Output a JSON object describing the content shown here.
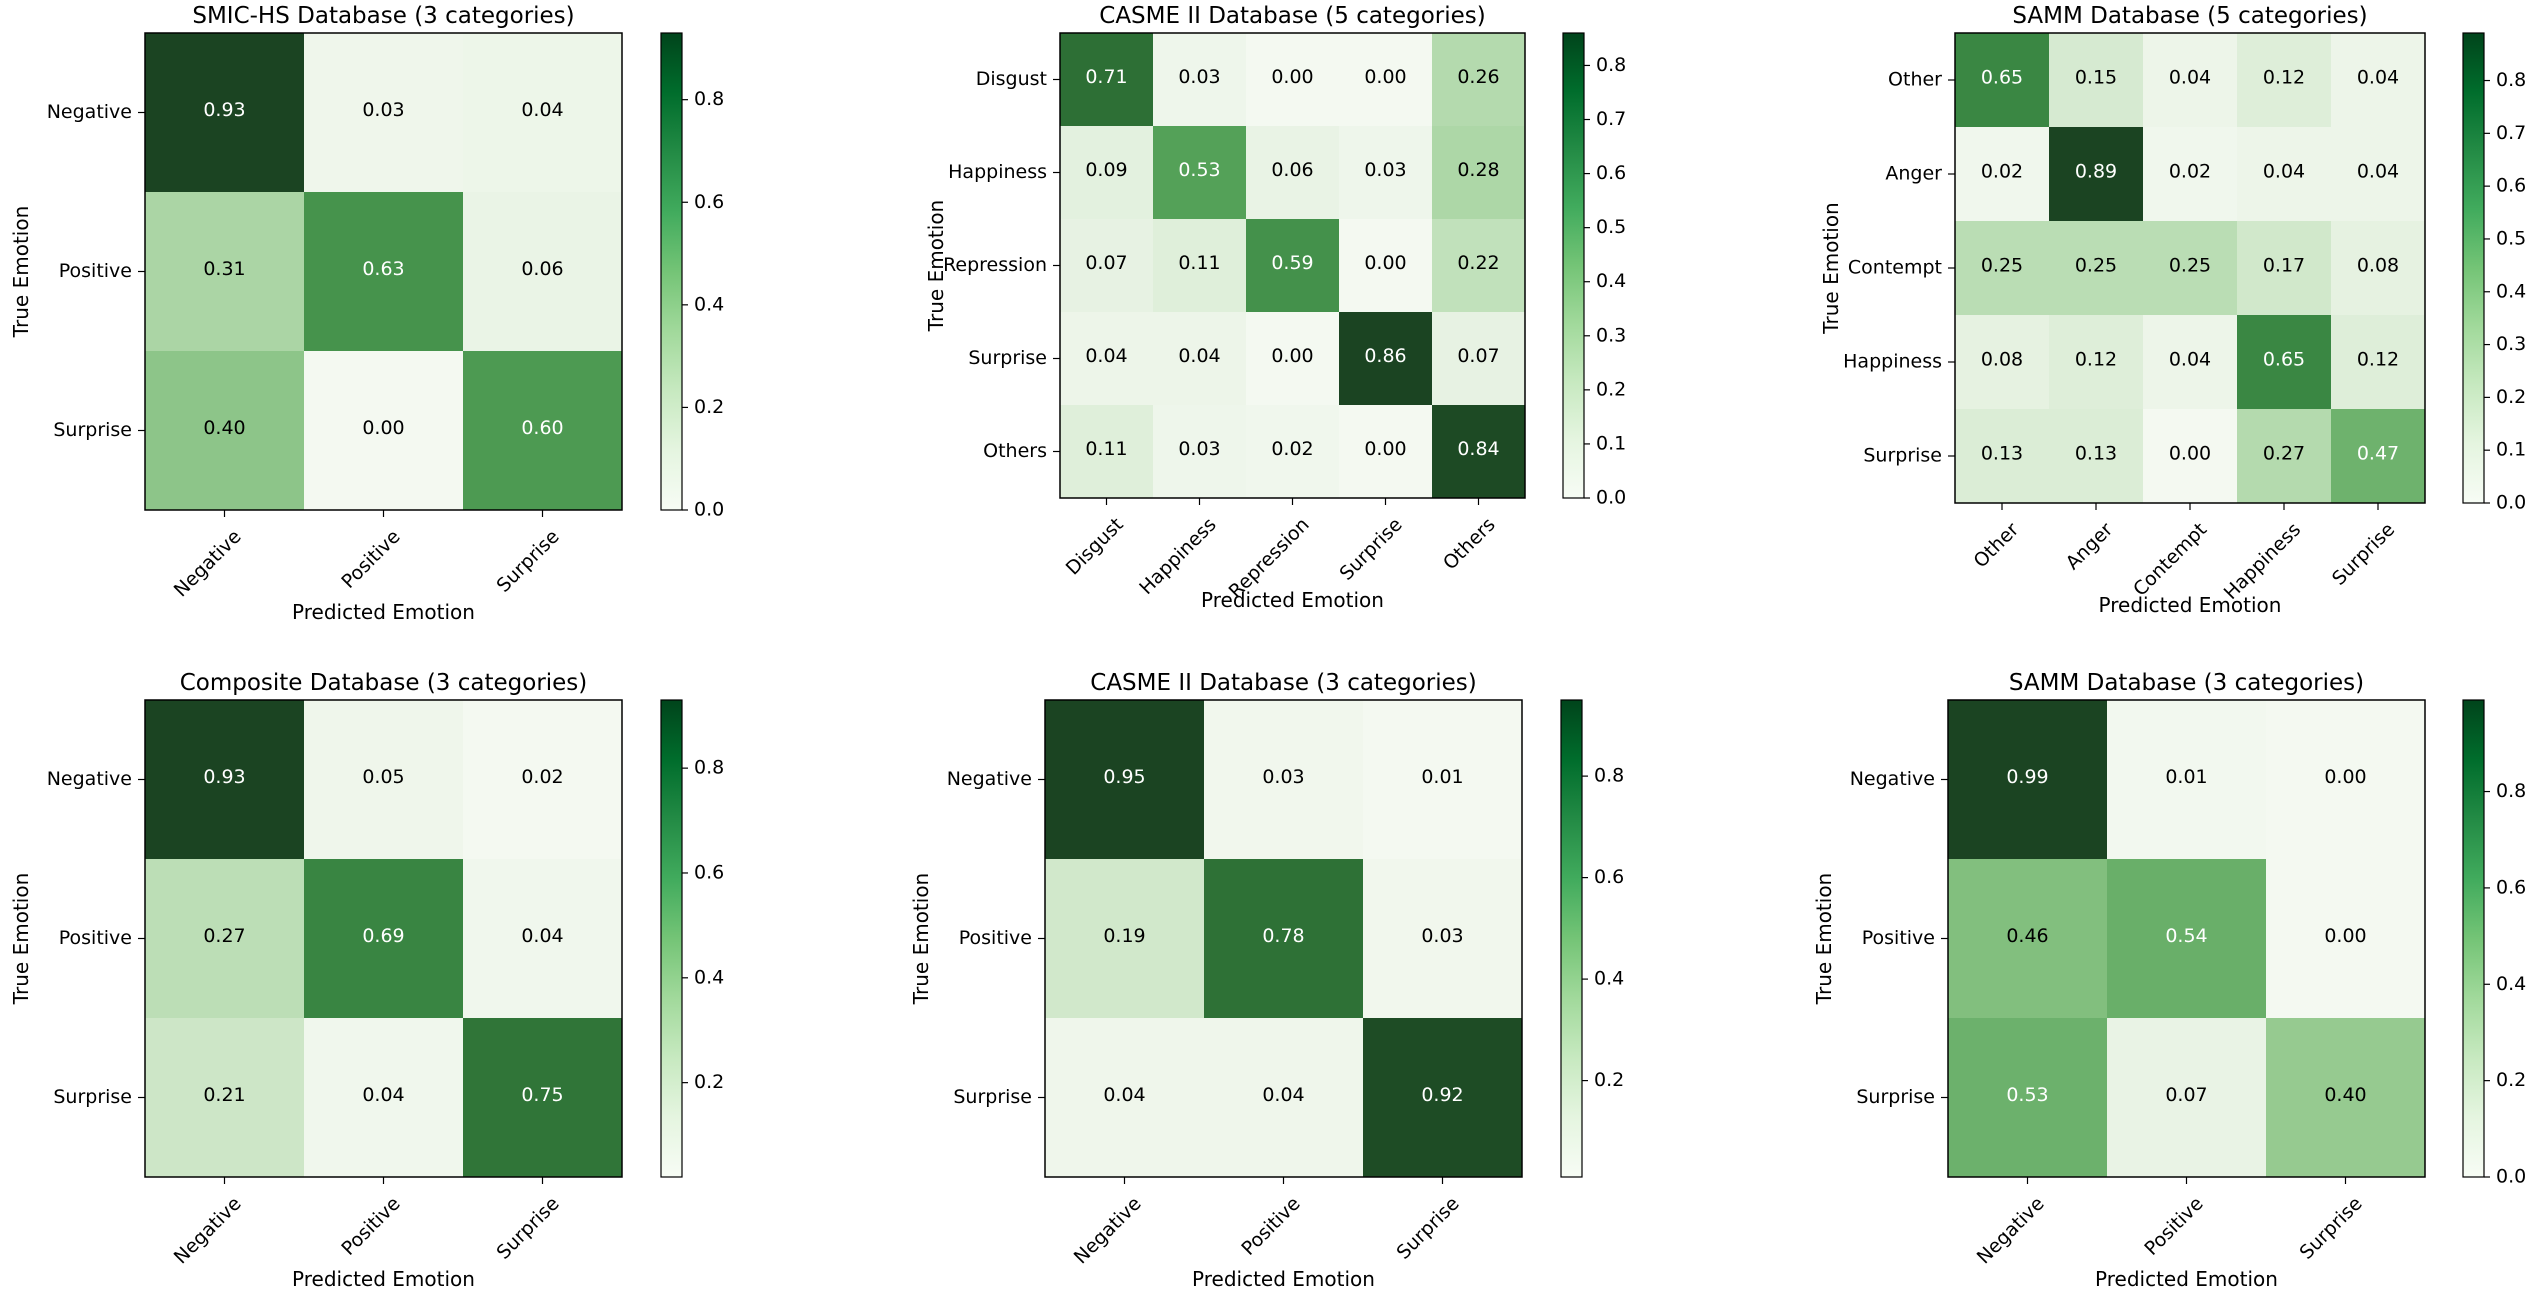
{
  "colormap": {
    "name": "Greens",
    "stops": [
      "#f7fcf5",
      "#e5f5e0",
      "#c7e9c0",
      "#a1d99b",
      "#74c476",
      "#41ab5d",
      "#238b45",
      "#006d2c",
      "#00441b"
    ],
    "matrix_colors": [
      "#f4f9f1",
      "#e0efdb",
      "#c3e2bd",
      "#9fcf99",
      "#77b874",
      "#519f56",
      "#36823f",
      "#27632f",
      "#1b4422"
    ],
    "text_light": "#ffffff",
    "text_dark": "#000000",
    "frame": "#000000"
  },
  "chart_data": [
    {
      "type": "heatmap",
      "title": "SMIC-HS Database (3 categories)",
      "xlabel": "Predicted Emotion",
      "ylabel": "True Emotion",
      "categories": [
        "Negative",
        "Positive",
        "Surprise"
      ],
      "values": [
        [
          0.93,
          0.03,
          0.04
        ],
        [
          0.31,
          0.63,
          0.06
        ],
        [
          0.4,
          0.0,
          0.6
        ]
      ],
      "cells": [
        [
          "0.93",
          "0.03",
          "0.04"
        ],
        [
          "0.31",
          "0.63",
          "0.06"
        ],
        [
          "0.40",
          "0.00",
          "0.60"
        ]
      ],
      "colorbar": {
        "min": 0.0,
        "max": 0.93,
        "ticks": [
          0.0,
          0.2,
          0.4,
          0.6,
          0.8
        ],
        "tick_labels": [
          "0.0",
          "0.2",
          "0.4",
          "0.6",
          "0.8"
        ]
      }
    },
    {
      "type": "heatmap",
      "title": "CASME II Database (5 categories)",
      "xlabel": "Predicted Emotion",
      "ylabel": "True Emotion",
      "categories": [
        "Disgust",
        "Happiness",
        "Repression",
        "Surprise",
        "Others"
      ],
      "values": [
        [
          0.71,
          0.03,
          0.0,
          0.0,
          0.26
        ],
        [
          0.09,
          0.53,
          0.06,
          0.03,
          0.28
        ],
        [
          0.07,
          0.11,
          0.59,
          0.0,
          0.22
        ],
        [
          0.04,
          0.04,
          0.0,
          0.86,
          0.07
        ],
        [
          0.11,
          0.03,
          0.02,
          0.0,
          0.84
        ]
      ],
      "cells": [
        [
          "0.71",
          "0.03",
          "0.00",
          "0.00",
          "0.26"
        ],
        [
          "0.09",
          "0.53",
          "0.06",
          "0.03",
          "0.28"
        ],
        [
          "0.07",
          "0.11",
          "0.59",
          "0.00",
          "0.22"
        ],
        [
          "0.04",
          "0.04",
          "0.00",
          "0.86",
          "0.07"
        ],
        [
          "0.11",
          "0.03",
          "0.02",
          "0.00",
          "0.84"
        ]
      ],
      "colorbar": {
        "min": 0.0,
        "max": 0.86,
        "ticks": [
          0.0,
          0.1,
          0.2,
          0.3,
          0.4,
          0.5,
          0.6,
          0.7,
          0.8
        ],
        "tick_labels": [
          "0.0",
          "0.1",
          "0.2",
          "0.3",
          "0.4",
          "0.5",
          "0.6",
          "0.7",
          "0.8"
        ]
      }
    },
    {
      "type": "heatmap",
      "title": "SAMM Database (5 categories)",
      "xlabel": "Predicted Emotion",
      "ylabel": "True Emotion",
      "categories": [
        "Other",
        "Anger",
        "Contempt",
        "Happiness",
        "Surprise"
      ],
      "values": [
        [
          0.65,
          0.15,
          0.04,
          0.12,
          0.04
        ],
        [
          0.02,
          0.89,
          0.02,
          0.04,
          0.04
        ],
        [
          0.25,
          0.25,
          0.25,
          0.17,
          0.08
        ],
        [
          0.08,
          0.12,
          0.04,
          0.65,
          0.12
        ],
        [
          0.13,
          0.13,
          0.0,
          0.27,
          0.47
        ]
      ],
      "cells": [
        [
          "0.65",
          "0.15",
          "0.04",
          "0.12",
          "0.04"
        ],
        [
          "0.02",
          "0.89",
          "0.02",
          "0.04",
          "0.04"
        ],
        [
          "0.25",
          "0.25",
          "0.25",
          "0.17",
          "0.08"
        ],
        [
          "0.08",
          "0.12",
          "0.04",
          "0.65",
          "0.12"
        ],
        [
          "0.13",
          "0.13",
          "0.00",
          "0.27",
          "0.47"
        ]
      ],
      "colorbar": {
        "min": 0.0,
        "max": 0.89,
        "ticks": [
          0.0,
          0.1,
          0.2,
          0.3,
          0.4,
          0.5,
          0.6,
          0.7,
          0.8
        ],
        "tick_labels": [
          "0.0",
          "0.1",
          "0.2",
          "0.3",
          "0.4",
          "0.5",
          "0.6",
          "0.7",
          "0.8"
        ]
      }
    },
    {
      "type": "heatmap",
      "title": "Composite Database (3 categories)",
      "xlabel": "Predicted Emotion",
      "ylabel": "True Emotion",
      "categories": [
        "Negative",
        "Positive",
        "Surprise"
      ],
      "values": [
        [
          0.93,
          0.05,
          0.02
        ],
        [
          0.27,
          0.69,
          0.04
        ],
        [
          0.21,
          0.04,
          0.75
        ]
      ],
      "cells": [
        [
          "0.93",
          "0.05",
          "0.02"
        ],
        [
          "0.27",
          "0.69",
          "0.04"
        ],
        [
          "0.21",
          "0.04",
          "0.75"
        ]
      ],
      "colorbar": {
        "min": 0.02,
        "max": 0.93,
        "ticks": [
          0.2,
          0.4,
          0.6,
          0.8
        ],
        "tick_labels": [
          "0.2",
          "0.4",
          "0.6",
          "0.8"
        ]
      }
    },
    {
      "type": "heatmap",
      "title": "CASME II Database (3 categories)",
      "xlabel": "Predicted Emotion",
      "ylabel": "True Emotion",
      "categories": [
        "Negative",
        "Positive",
        "Surprise"
      ],
      "values": [
        [
          0.95,
          0.03,
          0.01
        ],
        [
          0.19,
          0.78,
          0.03
        ],
        [
          0.04,
          0.04,
          0.92
        ]
      ],
      "cells": [
        [
          "0.95",
          "0.03",
          "0.01"
        ],
        [
          "0.19",
          "0.78",
          "0.03"
        ],
        [
          "0.04",
          "0.04",
          "0.92"
        ]
      ],
      "colorbar": {
        "min": 0.01,
        "max": 0.95,
        "ticks": [
          0.2,
          0.4,
          0.6,
          0.8
        ],
        "tick_labels": [
          "0.2",
          "0.4",
          "0.6",
          "0.8"
        ]
      }
    },
    {
      "type": "heatmap",
      "title": "SAMM Database (3 categories)",
      "xlabel": "Predicted Emotion",
      "ylabel": "True Emotion",
      "categories": [
        "Negative",
        "Positive",
        "Surprise"
      ],
      "values": [
        [
          0.99,
          0.01,
          0.0
        ],
        [
          0.46,
          0.54,
          0.0
        ],
        [
          0.53,
          0.07,
          0.4
        ]
      ],
      "cells": [
        [
          "0.99",
          "0.01",
          "0.00"
        ],
        [
          "0.46",
          "0.54",
          "0.00"
        ],
        [
          "0.53",
          "0.07",
          "0.40"
        ]
      ],
      "colorbar": {
        "min": 0.0,
        "max": 0.99,
        "ticks": [
          0.0,
          0.2,
          0.4,
          0.6,
          0.8
        ],
        "tick_labels": [
          "0.0",
          "0.2",
          "0.4",
          "0.6",
          "0.8"
        ]
      }
    }
  ]
}
